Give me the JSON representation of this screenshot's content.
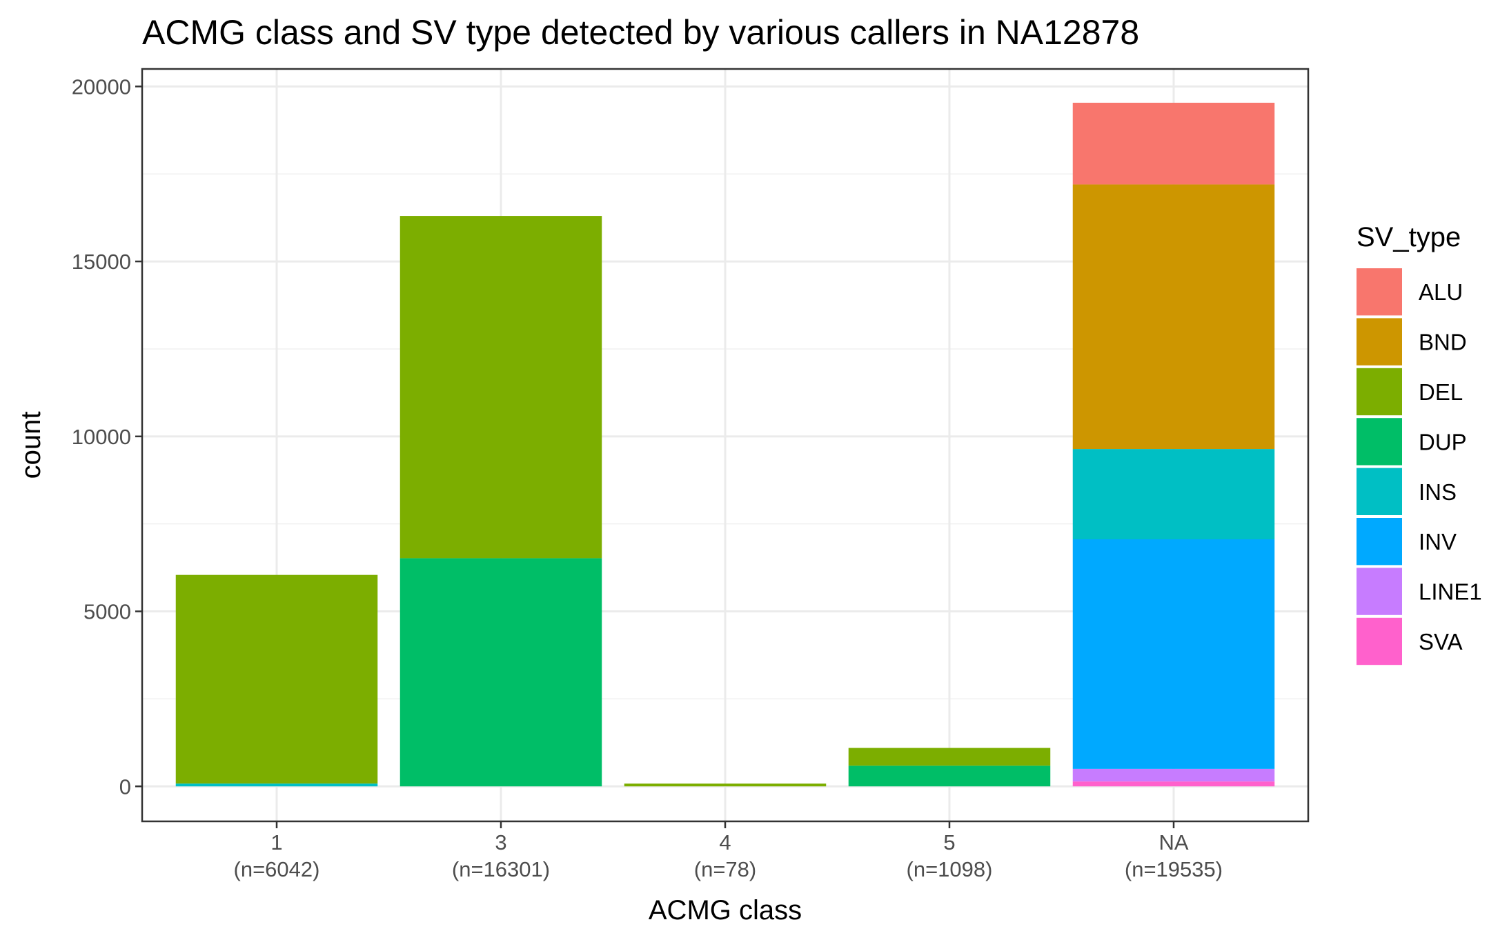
{
  "chart_data": {
    "type": "bar",
    "stacked": true,
    "title": "ACMG class and SV type detected by various callers in NA12878",
    "xlabel": "ACMG class",
    "ylabel": "count",
    "ylim": [
      -1000,
      20500
    ],
    "yticks": [
      0,
      5000,
      10000,
      15000,
      20000
    ],
    "grid": true,
    "legend_title": "SV_type",
    "legend_position": "right",
    "categories": [
      {
        "label": "1",
        "sublabel": "(n=6042)"
      },
      {
        "label": "3",
        "sublabel": "(n=16301)"
      },
      {
        "label": "4",
        "sublabel": "(n=78)"
      },
      {
        "label": "5",
        "sublabel": "(n=1098)"
      },
      {
        "label": "NA",
        "sublabel": "(n=19535)"
      }
    ],
    "series": [
      {
        "name": "ALU",
        "color": "#F8766D",
        "values": [
          0,
          0,
          0,
          0,
          2335
        ]
      },
      {
        "name": "BND",
        "color": "#CD9600",
        "values": [
          0,
          0,
          0,
          0,
          7560
        ]
      },
      {
        "name": "DEL",
        "color": "#7CAE00",
        "values": [
          5962,
          9781,
          78,
          508,
          0
        ]
      },
      {
        "name": "DUP",
        "color": "#00BE67",
        "values": [
          0,
          6520,
          0,
          590,
          0
        ]
      },
      {
        "name": "INS",
        "color": "#00BFC4",
        "values": [
          80,
          0,
          0,
          0,
          2580
        ]
      },
      {
        "name": "INV",
        "color": "#00A9FF",
        "values": [
          0,
          0,
          0,
          0,
          6560
        ]
      },
      {
        "name": "LINE1",
        "color": "#C77CFF",
        "values": [
          0,
          0,
          0,
          0,
          360
        ]
      },
      {
        "name": "SVA",
        "color": "#FF61CC",
        "values": [
          0,
          0,
          0,
          0,
          140
        ]
      }
    ]
  }
}
